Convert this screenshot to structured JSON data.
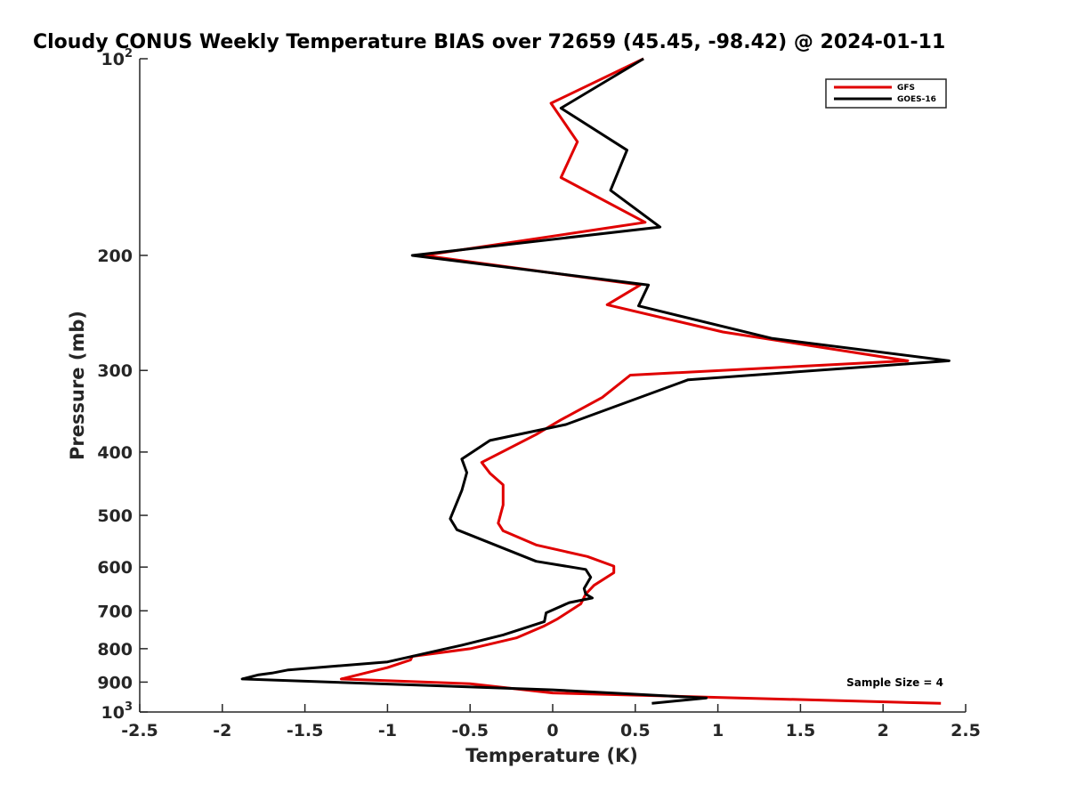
{
  "chart_data": {
    "type": "line",
    "title": "Cloudy CONUS Weekly Temperature BIAS over 72659 (45.45, -98.42) @ 2024-01-11",
    "xlabel": "Temperature (K)",
    "ylabel": "Pressure (mb)",
    "xlim": [
      -2.5,
      2.5
    ],
    "ylim": [
      100,
      1000
    ],
    "yscale": "log",
    "y_reversed": true,
    "xticks": [
      "-2.5",
      "-2",
      "-1.5",
      "-1",
      "-0.5",
      "0",
      "0.5",
      "1",
      "1.5",
      "2",
      "2.5"
    ],
    "yticks": [
      {
        "value": 100,
        "base": "10",
        "exp": "2"
      },
      {
        "value": 200,
        "label": "200"
      },
      {
        "value": 300,
        "label": "300"
      },
      {
        "value": 400,
        "label": "400"
      },
      {
        "value": 500,
        "label": "500"
      },
      {
        "value": 600,
        "label": "600"
      },
      {
        "value": 700,
        "label": "700"
      },
      {
        "value": 800,
        "label": "800"
      },
      {
        "value": 900,
        "label": "900"
      },
      {
        "value": 1000,
        "base": "10",
        "exp": "3"
      }
    ],
    "grid": false,
    "legend_position": "top-right",
    "annotation": "Sample Size = 4",
    "series": [
      {
        "name": "GFS",
        "color": "#e00000",
        "points": [
          [
            0.55,
            100
          ],
          [
            -0.01,
            117
          ],
          [
            0.15,
            134
          ],
          [
            0.05,
            152
          ],
          [
            0.56,
            178
          ],
          [
            -0.78,
            200
          ],
          [
            0.53,
            222
          ],
          [
            0.33,
            238
          ],
          [
            1.03,
            262
          ],
          [
            2.15,
            290
          ],
          [
            0.47,
            305
          ],
          [
            0.3,
            330
          ],
          [
            0.05,
            357
          ],
          [
            -0.1,
            376
          ],
          [
            -0.43,
            415
          ],
          [
            -0.38,
            431
          ],
          [
            -0.3,
            449
          ],
          [
            -0.3,
            482
          ],
          [
            -0.33,
            514
          ],
          [
            -0.3,
            528
          ],
          [
            -0.1,
            555
          ],
          [
            0.21,
            578
          ],
          [
            0.37,
            598
          ],
          [
            0.37,
            612
          ],
          [
            0.25,
            640
          ],
          [
            0.2,
            660
          ],
          [
            0.17,
            683
          ],
          [
            0.03,
            720
          ],
          [
            -0.05,
            738
          ],
          [
            -0.22,
            770
          ],
          [
            -0.5,
            800
          ],
          [
            -0.85,
            822
          ],
          [
            -0.86,
            832
          ],
          [
            -1.0,
            855
          ],
          [
            -1.28,
            890
          ],
          [
            -0.5,
            905
          ],
          [
            0.0,
            935
          ],
          [
            1.0,
            950
          ],
          [
            2.35,
            970
          ]
        ]
      },
      {
        "name": "GOES-16",
        "color": "#000000",
        "points": [
          [
            0.55,
            100
          ],
          [
            0.05,
            119
          ],
          [
            0.45,
            138
          ],
          [
            0.35,
            159
          ],
          [
            0.65,
            181
          ],
          [
            -0.85,
            200
          ],
          [
            0.58,
            222
          ],
          [
            0.52,
            239
          ],
          [
            1.33,
            268
          ],
          [
            2.4,
            290
          ],
          [
            0.82,
            310
          ],
          [
            0.08,
            363
          ],
          [
            -0.38,
            384
          ],
          [
            -0.55,
            410
          ],
          [
            -0.52,
            430
          ],
          [
            -0.55,
            458
          ],
          [
            -0.62,
            506
          ],
          [
            -0.58,
            526
          ],
          [
            -0.1,
            588
          ],
          [
            0.2,
            605
          ],
          [
            0.23,
            622
          ],
          [
            0.19,
            647
          ],
          [
            0.2,
            660
          ],
          [
            0.24,
            669
          ],
          [
            0.1,
            680
          ],
          [
            -0.04,
            705
          ],
          [
            -0.05,
            727
          ],
          [
            -0.3,
            762
          ],
          [
            -0.55,
            790
          ],
          [
            -1.0,
            838
          ],
          [
            -1.6,
            862
          ],
          [
            -1.7,
            872
          ],
          [
            -1.78,
            877
          ],
          [
            -1.88,
            890
          ],
          [
            0.0,
            925
          ],
          [
            0.93,
            952
          ],
          [
            0.6,
            970
          ]
        ]
      }
    ]
  }
}
